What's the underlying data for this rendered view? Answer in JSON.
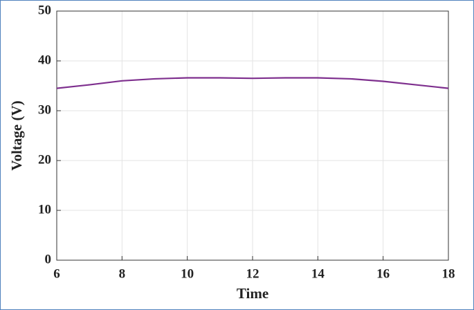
{
  "chart_data": {
    "type": "line",
    "x_label": "Time",
    "y_label": "Voltage (V)",
    "x": [
      6,
      7,
      8,
      9,
      10,
      11,
      12,
      13,
      14,
      15,
      16,
      17,
      18
    ],
    "series": [
      {
        "color": "#7e2f8e",
        "values": [
          34.5,
          35.2,
          36.0,
          36.4,
          36.6,
          36.6,
          36.5,
          36.6,
          36.6,
          36.4,
          35.9,
          35.2,
          34.5
        ]
      }
    ],
    "xlim": [
      6,
      18
    ],
    "xticks": [
      6,
      8,
      10,
      12,
      14,
      16,
      18
    ],
    "ylim": [
      0,
      50
    ],
    "yticks": [
      0,
      10,
      20,
      30,
      40,
      50
    ],
    "grid": true
  }
}
